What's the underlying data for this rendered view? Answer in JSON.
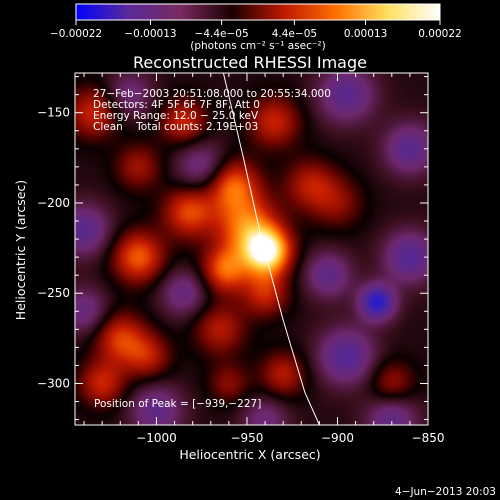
{
  "chart_data": {
    "type": "heatmap",
    "title": "Reconstructed RHESSI Image",
    "xlabel": "Heliocentric X (arcsec)",
    "ylabel": "Heliocentric Y (arcsec)",
    "xlim": [
      -1045,
      -850
    ],
    "ylim": [
      -323,
      -128
    ],
    "xticks": [
      -1000,
      -950,
      -900,
      -850
    ],
    "xtick_labels": [
      "−1000",
      "−950",
      "−900",
      "−850"
    ],
    "yticks": [
      -150,
      -200,
      -250,
      -300
    ],
    "ytick_labels": [
      "−150",
      "−200",
      "−250",
      "−300"
    ],
    "colorbar": {
      "ticks": [
        -0.00022,
        -0.00013,
        -4.4e-05,
        4.4e-05,
        0.00013,
        0.00022
      ],
      "tick_labels": [
        "−0.00022",
        "−0.00013",
        "−4.4e−05",
        "4.4e−05",
        "0.00013",
        "0.00022"
      ],
      "range": [
        -0.00022,
        0.00022
      ],
      "unit_label": "(photons cm⁻² s⁻¹ asec⁻²)",
      "colors": [
        "#0000ff",
        "#5a2a9a",
        "#7a2a60",
        "#1a0000",
        "#c01800",
        "#ff7000",
        "#ffe060",
        "#ffffff"
      ]
    },
    "annotations": [
      "27−Feb−2003 20:51:08.000 to 20:55:34.000",
      "Detectors: 4F 5F 6F 7F 8F, Att 0",
      "Energy Range: 12.0 − 25.0 keV",
      "Clean    Total counts: 2.19E+03"
    ],
    "peak_label": "Position of Peak = [−939,−227]",
    "peak": {
      "x": -939,
      "y": -227
    },
    "limb_curve": {
      "x": [
        -963,
        -952,
        -942,
        -930,
        -918,
        -910
      ],
      "y": [
        -128,
        -175,
        -220,
        -265,
        -305,
        -323
      ]
    },
    "sources": [
      {
        "x": -939,
        "y": -227,
        "w": 1.0,
        "sigma": 9
      },
      {
        "x": -950,
        "y": -213,
        "w": 0.6,
        "sigma": 12
      },
      {
        "x": -962,
        "y": -237,
        "w": 0.55,
        "sigma": 9
      },
      {
        "x": -958,
        "y": -190,
        "w": 0.55,
        "sigma": 10
      },
      {
        "x": -1010,
        "y": -230,
        "w": 0.55,
        "sigma": 10
      },
      {
        "x": -982,
        "y": -205,
        "w": 0.5,
        "sigma": 10
      },
      {
        "x": -1020,
        "y": -275,
        "w": 0.45,
        "sigma": 10
      },
      {
        "x": -1030,
        "y": -300,
        "w": 0.4,
        "sigma": 9
      },
      {
        "x": -1005,
        "y": -285,
        "w": 0.35,
        "sigma": 9
      },
      {
        "x": -985,
        "y": -155,
        "w": 0.4,
        "sigma": 9
      },
      {
        "x": -1035,
        "y": -150,
        "w": 0.4,
        "sigma": 10
      },
      {
        "x": -935,
        "y": -155,
        "w": 0.4,
        "sigma": 10
      },
      {
        "x": -915,
        "y": -190,
        "w": 0.35,
        "sigma": 10
      },
      {
        "x": -965,
        "y": -270,
        "w": 0.35,
        "sigma": 10
      },
      {
        "x": -930,
        "y": -295,
        "w": 0.35,
        "sigma": 9
      },
      {
        "x": -940,
        "y": -250,
        "w": 0.4,
        "sigma": 9
      },
      {
        "x": -870,
        "y": -300,
        "w": 0.3,
        "sigma": 9
      },
      {
        "x": -900,
        "y": -200,
        "w": 0.25,
        "sigma": 10
      },
      {
        "x": -1010,
        "y": -180,
        "w": 0.3,
        "sigma": 9
      },
      {
        "x": -960,
        "y": -300,
        "w": 0.25,
        "sigma": 8
      },
      {
        "x": -878,
        "y": -255,
        "w": -0.75,
        "sigma": 7
      },
      {
        "x": -975,
        "y": -180,
        "w": -0.35,
        "sigma": 10
      },
      {
        "x": -1040,
        "y": -215,
        "w": -0.45,
        "sigma": 10
      },
      {
        "x": -895,
        "y": -140,
        "w": -0.45,
        "sigma": 11
      },
      {
        "x": -860,
        "y": -170,
        "w": -0.45,
        "sigma": 10
      },
      {
        "x": -895,
        "y": -285,
        "w": -0.5,
        "sigma": 11
      },
      {
        "x": -1000,
        "y": -315,
        "w": -0.4,
        "sigma": 10
      },
      {
        "x": -985,
        "y": -250,
        "w": -0.35,
        "sigma": 9
      },
      {
        "x": -860,
        "y": -230,
        "w": -0.5,
        "sigma": 10
      },
      {
        "x": -905,
        "y": -240,
        "w": -0.4,
        "sigma": 9
      },
      {
        "x": -1040,
        "y": -260,
        "w": -0.35,
        "sigma": 9
      },
      {
        "x": -940,
        "y": -320,
        "w": -0.3,
        "sigma": 9
      },
      {
        "x": -870,
        "y": -320,
        "w": -0.4,
        "sigma": 10
      },
      {
        "x": -1015,
        "y": -140,
        "w": -0.3,
        "sigma": 9
      }
    ]
  },
  "footer_date": "4−Jun−2013 20:03"
}
